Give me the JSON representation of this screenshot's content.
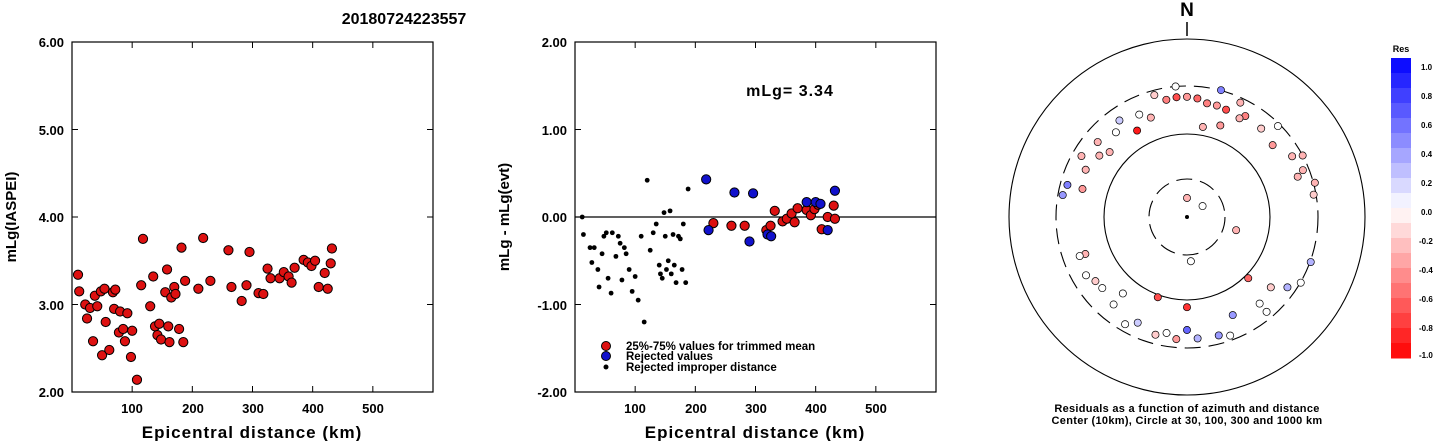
{
  "event_id": "20180724223557",
  "colors": {
    "trimmed": "#dd1111",
    "rejected": "#1111cc",
    "improper": "#000000"
  },
  "chart_data": [
    {
      "type": "scatter",
      "ylabel": "mLg(IASPEI)",
      "xlabel": "Epicentral distance (km)",
      "xlim": [
        0,
        600
      ],
      "ylim": [
        2.0,
        6.0
      ],
      "xticks": [
        "100",
        "200",
        "300",
        "400",
        "500"
      ],
      "yticks": [
        "2.00",
        "3.00",
        "4.00",
        "5.00",
        "6.00"
      ],
      "points": [
        [
          10,
          3.34
        ],
        [
          12,
          3.15
        ],
        [
          22,
          3.0
        ],
        [
          25,
          2.84
        ],
        [
          30,
          2.96
        ],
        [
          35,
          2.58
        ],
        [
          38,
          3.1
        ],
        [
          42,
          2.98
        ],
        [
          48,
          3.15
        ],
        [
          50,
          2.42
        ],
        [
          54,
          3.18
        ],
        [
          56,
          2.8
        ],
        [
          62,
          2.48
        ],
        [
          68,
          3.14
        ],
        [
          70,
          2.95
        ],
        [
          72,
          3.17
        ],
        [
          78,
          2.68
        ],
        [
          80,
          2.92
        ],
        [
          85,
          2.72
        ],
        [
          88,
          2.58
        ],
        [
          92,
          2.9
        ],
        [
          98,
          2.4
        ],
        [
          100,
          2.7
        ],
        [
          108,
          2.14
        ],
        [
          115,
          3.22
        ],
        [
          118,
          3.75
        ],
        [
          130,
          2.98
        ],
        [
          135,
          3.32
        ],
        [
          138,
          2.75
        ],
        [
          142,
          2.65
        ],
        [
          145,
          2.78
        ],
        [
          148,
          2.6
        ],
        [
          155,
          3.14
        ],
        [
          158,
          3.4
        ],
        [
          160,
          2.75
        ],
        [
          162,
          2.57
        ],
        [
          165,
          3.08
        ],
        [
          170,
          3.2
        ],
        [
          172,
          3.12
        ],
        [
          178,
          2.72
        ],
        [
          182,
          3.65
        ],
        [
          185,
          2.57
        ],
        [
          188,
          3.27
        ],
        [
          210,
          3.18
        ],
        [
          218,
          3.76
        ],
        [
          230,
          3.27
        ],
        [
          260,
          3.62
        ],
        [
          265,
          3.2
        ],
        [
          282,
          3.04
        ],
        [
          290,
          3.22
        ],
        [
          295,
          3.6
        ],
        [
          310,
          3.13
        ],
        [
          318,
          3.12
        ],
        [
          325,
          3.41
        ],
        [
          330,
          3.3
        ],
        [
          345,
          3.3
        ],
        [
          352,
          3.37
        ],
        [
          360,
          3.32
        ],
        [
          365,
          3.25
        ],
        [
          370,
          3.42
        ],
        [
          385,
          3.51
        ],
        [
          392,
          3.48
        ],
        [
          398,
          3.44
        ],
        [
          404,
          3.5
        ],
        [
          410,
          3.2
        ],
        [
          420,
          3.36
        ],
        [
          425,
          3.18
        ],
        [
          430,
          3.47
        ],
        [
          432,
          3.64
        ]
      ]
    },
    {
      "type": "scatter",
      "ylabel": "mLg - mLg(evt)",
      "xlabel": "Epicentral distance (km)",
      "xlim": [
        0,
        600
      ],
      "ylim": [
        -2.0,
        2.0
      ],
      "xticks": [
        "100",
        "200",
        "300",
        "400",
        "500"
      ],
      "yticks": [
        "-2.00",
        "-1.00",
        "0.00",
        "1.00",
        "2.00"
      ],
      "annotation": "mLg= 3.34",
      "legend": {
        "position": "bottom-left",
        "entries": [
          "25%-75% values for trimmed mean",
          "Rejected values",
          "Rejected improper distance"
        ]
      },
      "series": [
        {
          "name": "25%-75% values for trimmed mean",
          "points": [
            [
              230,
              -0.07
            ],
            [
              260,
              -0.1
            ],
            [
              282,
              -0.1
            ],
            [
              318,
              -0.15
            ],
            [
              325,
              -0.1
            ],
            [
              332,
              0.07
            ],
            [
              345,
              -0.05
            ],
            [
              352,
              -0.02
            ],
            [
              360,
              0.04
            ],
            [
              365,
              -0.06
            ],
            [
              370,
              0.1
            ],
            [
              385,
              0.08
            ],
            [
              392,
              0.02
            ],
            [
              398,
              0.09
            ],
            [
              404,
              0.14
            ],
            [
              410,
              -0.14
            ],
            [
              420,
              0.0
            ],
            [
              430,
              0.13
            ],
            [
              432,
              -0.02
            ]
          ]
        },
        {
          "name": "Rejected values",
          "points": [
            [
              218,
              0.43
            ],
            [
              222,
              -0.15
            ],
            [
              265,
              0.28
            ],
            [
              290,
              -0.28
            ],
            [
              296,
              0.27
            ],
            [
              320,
              -0.2
            ],
            [
              326,
              -0.22
            ],
            [
              385,
              0.17
            ],
            [
              400,
              0.17
            ],
            [
              408,
              0.15
            ],
            [
              420,
              -0.15
            ],
            [
              432,
              0.3
            ]
          ]
        },
        {
          "name": "Rejected improper distance",
          "points": [
            [
              12,
              0.0
            ],
            [
              14,
              -0.2
            ],
            [
              25,
              -0.35
            ],
            [
              28,
              -0.52
            ],
            [
              32,
              -0.35
            ],
            [
              38,
              -0.6
            ],
            [
              40,
              -0.8
            ],
            [
              45,
              -0.42
            ],
            [
              48,
              -0.22
            ],
            [
              52,
              -0.18
            ],
            [
              55,
              -0.7
            ],
            [
              60,
              -0.87
            ],
            [
              62,
              -0.18
            ],
            [
              68,
              -0.45
            ],
            [
              72,
              -0.22
            ],
            [
              75,
              -0.3
            ],
            [
              78,
              -0.72
            ],
            [
              82,
              -0.35
            ],
            [
              85,
              -0.42
            ],
            [
              90,
              -0.6
            ],
            [
              95,
              -0.85
            ],
            [
              100,
              -0.68
            ],
            [
              105,
              -0.95
            ],
            [
              110,
              -0.22
            ],
            [
              115,
              -1.2
            ],
            [
              120,
              0.42
            ],
            [
              125,
              -0.38
            ],
            [
              130,
              -0.18
            ],
            [
              135,
              -0.08
            ],
            [
              140,
              -0.55
            ],
            [
              142,
              -0.65
            ],
            [
              145,
              -0.7
            ],
            [
              148,
              0.05
            ],
            [
              150,
              -0.22
            ],
            [
              152,
              -0.6
            ],
            [
              155,
              -0.5
            ],
            [
              158,
              0.07
            ],
            [
              160,
              -0.65
            ],
            [
              163,
              -0.2
            ],
            [
              165,
              -0.55
            ],
            [
              168,
              -0.75
            ],
            [
              172,
              -0.22
            ],
            [
              175,
              -0.25
            ],
            [
              178,
              -0.6
            ],
            [
              180,
              -0.08
            ],
            [
              184,
              -0.75
            ],
            [
              188,
              0.32
            ]
          ]
        }
      ]
    },
    {
      "type": "polar",
      "north_label": "N",
      "caption_lines": [
        "Residuals as a function of azimuth and distance",
        "Center (10km), Circle at 30, 100, 300 and 1000 km"
      ],
      "rings": [
        {
          "km": 30,
          "style": "dashed"
        },
        {
          "km": 100,
          "style": "solid"
        },
        {
          "km": 300,
          "style": "dashed"
        },
        {
          "km": 1000,
          "style": "solid"
        }
      ],
      "colorbar": {
        "title": "Res",
        "range": [
          -1.0,
          1.0
        ],
        "ticks": [
          "1.0",
          "0.8",
          "0.6",
          "0.4",
          "0.2",
          "0.0",
          "-0.2",
          "-0.4",
          "-0.6",
          "-0.8",
          "-1.0"
        ]
      },
      "stations": [
        [
          0,
          20,
          -0.3
        ],
        [
          10,
          135,
          -0.3
        ],
        [
          250,
          205,
          -0.3
        ],
        [
          200,
          110,
          -0.7
        ],
        [
          135,
          115,
          -0.6
        ],
        [
          180,
          130,
          -0.8
        ],
        [
          330,
          170,
          -0.9
        ],
        [
          310,
          175,
          -0.3
        ],
        [
          20,
          160,
          -0.4
        ],
        [
          350,
          250,
          -0.5
        ],
        [
          355,
          255,
          -0.7
        ],
        [
          5,
          250,
          -0.6
        ],
        [
          0,
          255,
          -0.4
        ],
        [
          15,
          235,
          -0.4
        ],
        [
          30,
          240,
          -0.5
        ],
        [
          28,
          220,
          -0.3
        ],
        [
          310,
          240,
          -0.3
        ],
        [
          305,
          200,
          -0.3
        ],
        [
          25,
          280,
          -0.3
        ],
        [
          355,
          300,
          0.0
        ],
        [
          15,
          305,
          0.5
        ],
        [
          40,
          235,
          -0.2
        ],
        [
          70,
          245,
          -0.3
        ],
        [
          75,
          320,
          -0.3
        ],
        [
          45,
          290,
          0.0
        ],
        [
          60,
          260,
          -0.3
        ],
        [
          280,
          280,
          0.4
        ],
        [
          285,
          270,
          0.5
        ],
        [
          110,
          310,
          0.3
        ],
        [
          120,
          305,
          0.0
        ],
        [
          125,
          265,
          0.3
        ],
        [
          240,
          240,
          0.0
        ],
        [
          235,
          220,
          -0.2
        ],
        [
          220,
          230,
          0.0
        ],
        [
          205,
          240,
          0.2
        ],
        [
          210,
          270,
          0.0
        ],
        [
          195,
          262,
          -0.2
        ],
        [
          185,
          265,
          -0.4
        ],
        [
          175,
          262,
          0.3
        ],
        [
          190,
          245,
          0.0
        ],
        [
          165,
          265,
          0.4
        ],
        [
          180,
          225,
          0.6
        ],
        [
          155,
          205,
          0.4
        ],
        [
          140,
          225,
          0.0
        ],
        [
          130,
          210,
          -0.2
        ],
        [
          220,
          170,
          0.0
        ],
        [
          230,
          215,
          0.0
        ],
        [
          250,
          230,
          0.0
        ],
        [
          295,
          220,
          -0.3
        ],
        [
          285,
          205,
          -0.4
        ],
        [
          340,
          195,
          -0.3
        ],
        [
          320,
          215,
          0.0
        ],
        [
          325,
          245,
          0.2
        ],
        [
          175,
          40,
          0.0
        ],
        [
          105,
          50,
          -0.3
        ],
        [
          55,
          20,
          0.0
        ],
        [
          20,
          230,
          -0.7
        ],
        [
          62,
          300,
          -0.3
        ],
        [
          50,
          220,
          -0.4
        ],
        [
          68,
          275,
          -0.3
        ],
        [
          80,
          290,
          -0.2
        ],
        [
          335,
          225,
          0.0
        ],
        [
          160,
          280,
          0.0
        ],
        [
          300,
          262,
          -0.3
        ],
        [
          345,
          280,
          -0.2
        ],
        [
          10,
          235,
          -0.5
        ],
        [
          140,
          270,
          0.0
        ]
      ]
    }
  ]
}
